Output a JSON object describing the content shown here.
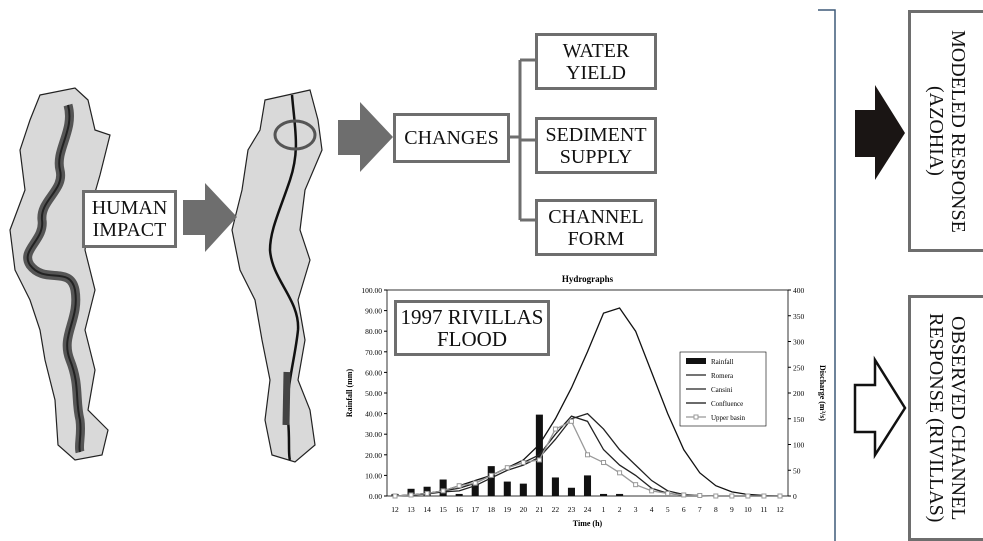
{
  "diagram": {
    "human_impact": "HUMAN IMPACT",
    "changes": "CHANGES",
    "outcomes": [
      "WATER YIELD",
      "SEDIMENT SUPPLY",
      "CHANNEL FORM"
    ],
    "flood_label": "1997 RIVILLAS FLOOD",
    "modeled_response": "MODELED RESPONSE (AZOHIA)",
    "observed_response": "OBSERVED CHANNEL RESPONSE (RIVILLAS)"
  },
  "chart_data": {
    "type": "bar-line",
    "title": "Hydrographs",
    "x_label": "Time (h)",
    "y_label": "Rainfall (mm)",
    "y2_label": "Discharge (m³/s)",
    "categories": [
      "12",
      "13",
      "14",
      "15",
      "16",
      "17",
      "18",
      "19",
      "20",
      "21",
      "22",
      "23",
      "24",
      "1",
      "2",
      "3",
      "4",
      "5",
      "6",
      "7",
      "8",
      "9",
      "10",
      "11",
      "12"
    ],
    "series": [
      {
        "name": "Rainfall",
        "color": "#111111",
        "kind": "bar",
        "values": [
          1,
          3.5,
          4.5,
          8,
          1,
          6,
          14.5,
          7,
          6,
          39.5,
          9,
          4,
          10,
          1,
          1,
          0,
          0,
          0,
          0,
          0,
          0,
          0,
          0,
          0,
          0
        ]
      },
      {
        "name": "Romera",
        "color": "#222222",
        "kind": "line",
        "axis": "y2",
        "values": [
          0,
          2,
          5,
          10,
          15,
          25,
          40,
          55,
          65,
          80,
          120,
          155,
          145,
          90,
          60,
          40,
          15,
          5,
          2,
          1,
          0,
          0,
          0,
          0,
          0
        ]
      },
      {
        "name": "Cansini",
        "color": "#222222",
        "kind": "line",
        "axis": "y2",
        "values": [
          0,
          2,
          4,
          8,
          10,
          20,
          35,
          50,
          60,
          75,
          110,
          150,
          160,
          130,
          90,
          60,
          30,
          10,
          3,
          1,
          0,
          0,
          0,
          0,
          0
        ]
      },
      {
        "name": "Confluence",
        "color": "#111111",
        "kind": "line",
        "axis": "y2",
        "values": [
          0,
          2,
          5,
          10,
          20,
          30,
          40,
          55,
          70,
          100,
          150,
          210,
          280,
          355,
          365,
          320,
          240,
          160,
          90,
          45,
          20,
          8,
          3,
          1,
          0
        ]
      },
      {
        "name": "Upper basin",
        "color": "#999999",
        "kind": "line-marker",
        "axis": "y2",
        "values": [
          0,
          2,
          5,
          10,
          20,
          25,
          40,
          55,
          65,
          70,
          130,
          145,
          80,
          65,
          45,
          22,
          10,
          5,
          2,
          1,
          0,
          0,
          0,
          0,
          0
        ]
      }
    ],
    "ylim": [
      0,
      100
    ],
    "yticks": [
      {
        "value": 0,
        "label": "0.00"
      },
      {
        "value": 10,
        "label": "10.00"
      },
      {
        "value": 20,
        "label": "20.00"
      },
      {
        "value": 30,
        "label": "30.00"
      },
      {
        "value": 40,
        "label": "40.00"
      },
      {
        "value": 50,
        "label": "50.00"
      },
      {
        "value": 60,
        "label": "60.00"
      },
      {
        "value": 70,
        "label": "70.00"
      },
      {
        "value": 80,
        "label": "80.00"
      },
      {
        "value": 90,
        "label": "90.00"
      },
      {
        "value": 100,
        "label": "100.00"
      }
    ],
    "y2lim": [
      0,
      400
    ],
    "y2ticks": [
      0,
      50,
      100,
      150,
      200,
      250,
      300,
      350,
      400
    ],
    "legend": "right"
  }
}
